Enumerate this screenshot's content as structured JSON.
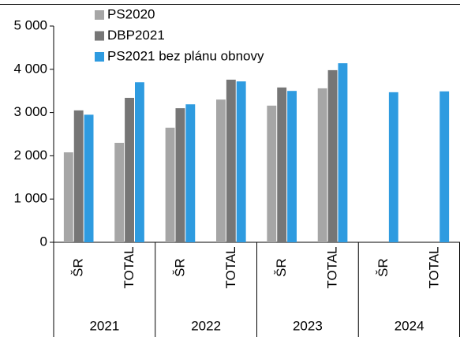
{
  "chart_data": {
    "type": "bar",
    "categories": [
      "ŠR",
      "TOTAL",
      "ŠR",
      "TOTAL",
      "ŠR",
      "TOTAL",
      "ŠR",
      "TOTAL"
    ],
    "groups": [
      "2021",
      "2022",
      "2023",
      "2024"
    ],
    "series": [
      {
        "name": "PS2020",
        "color": "#a6a6a6",
        "values": [
          2080,
          2300,
          2650,
          3300,
          3160,
          3560,
          null,
          null
        ]
      },
      {
        "name": "DBP2021",
        "color": "#767676",
        "values": [
          3050,
          3340,
          3100,
          3760,
          3580,
          3980,
          null,
          null
        ]
      },
      {
        "name": "PS2021 bez plánu obnovy",
        "color": "#2e9be0",
        "values": [
          2950,
          3700,
          3190,
          3720,
          3500,
          4140,
          3470,
          3490
        ]
      }
    ],
    "ylim": [
      0,
      5000
    ],
    "yticks": [
      0,
      {
        "value": 1000,
        "label": "1 000"
      },
      {
        "value": 2000,
        "label": "2 000"
      },
      {
        "value": 3000,
        "label": "3 000"
      },
      {
        "value": 4000,
        "label": "4 000"
      },
      {
        "value": 5000,
        "label": "5 000"
      }
    ],
    "legend": "top-left"
  }
}
